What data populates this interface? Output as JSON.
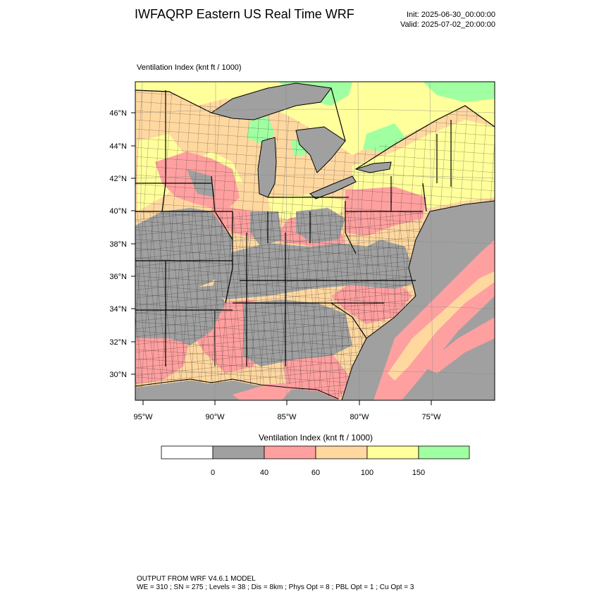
{
  "header": {
    "title": "IWFAQRP Eastern US Real Time WRF",
    "init": "Init: 2025-06-30_00:00:00",
    "valid": "Valid: 2025-07-02_20:00:00"
  },
  "map": {
    "field_label": "Ventilation Index   (knt ft / 1000)",
    "lat_labels": [
      "46°N",
      "44°N",
      "42°N",
      "40°N",
      "38°N",
      "36°N",
      "34°N",
      "32°N",
      "30°N"
    ],
    "lon_labels": [
      "95°W",
      "90°W",
      "85°W",
      "80°W",
      "75°W"
    ]
  },
  "legend": {
    "title": "Ventilation Index  (knt ft / 1000)",
    "ticks": [
      "0",
      "40",
      "60",
      "100",
      "150"
    ],
    "colors": [
      "#ffffff",
      "#a0a0a0",
      "#ffa0a0",
      "#ffd8a0",
      "#ffff9c",
      "#a0ffa0"
    ]
  },
  "colors": {
    "land_low": "#a0a0a0",
    "water": "#a0a0a0",
    "pink": "#ffa0a0",
    "orange": "#ffd8a0",
    "yellow": "#ffff9c",
    "green": "#a0ffa0"
  },
  "footer": {
    "line1": "OUTPUT FROM WRF V4.6.1 MODEL",
    "line2": "WE = 310 ; SN = 275 ; Levels = 38 ; Dis = 8km ; Phys Opt = 8 ; PBL Opt = 1 ; Cu Opt = 3"
  }
}
